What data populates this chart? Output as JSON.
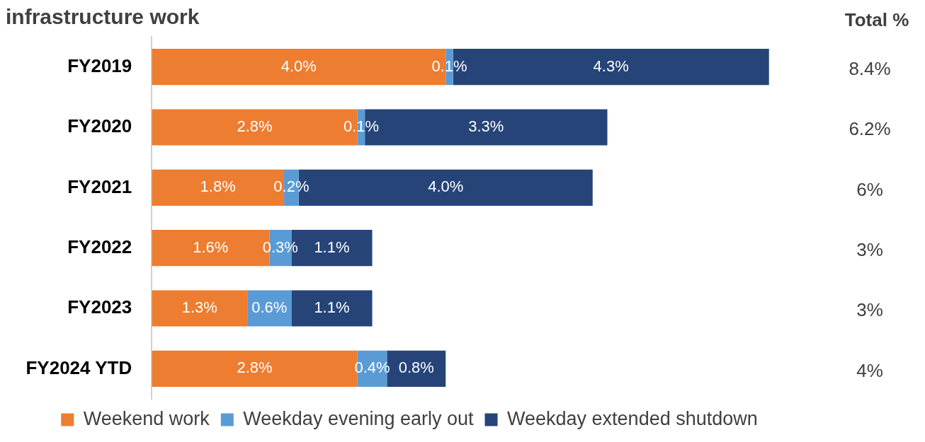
{
  "chart_data": {
    "type": "bar",
    "orientation": "horizontal",
    "stacked": true,
    "title": "infrastructure work",
    "categories": [
      "FY2019",
      "FY2020",
      "FY2021",
      "FY2022",
      "FY2023",
      "FY2024 YTD"
    ],
    "series": [
      {
        "name": "Weekend work",
        "color": "#ed7d31",
        "values": [
          4.0,
          2.8,
          1.8,
          1.6,
          1.3,
          2.8
        ],
        "value_labels": [
          "4.0%",
          "2.8%",
          "1.8%",
          "1.6%",
          "1.3%",
          "2.8%"
        ]
      },
      {
        "name": "Weekday evening early out",
        "color": "#5b9bd5",
        "values": [
          0.1,
          0.1,
          0.2,
          0.3,
          0.6,
          0.4
        ],
        "value_labels": [
          "0.1%",
          "0.1%",
          "0.2%",
          "0.3%",
          "0.6%",
          "0.4%"
        ]
      },
      {
        "name": "Weekday extended shutdown",
        "color": "#264478",
        "values": [
          4.3,
          3.3,
          4.0,
          1.1,
          1.1,
          0.8
        ],
        "value_labels": [
          "4.3%",
          "3.3%",
          "4.0%",
          "1.1%",
          "1.1%",
          "0.8%"
        ]
      }
    ],
    "annotations": [
      "Total %",
      "8.4%",
      "6.2%",
      "6%",
      "3%",
      "3%",
      "4%"
    ],
    "legend": "bottom"
  }
}
